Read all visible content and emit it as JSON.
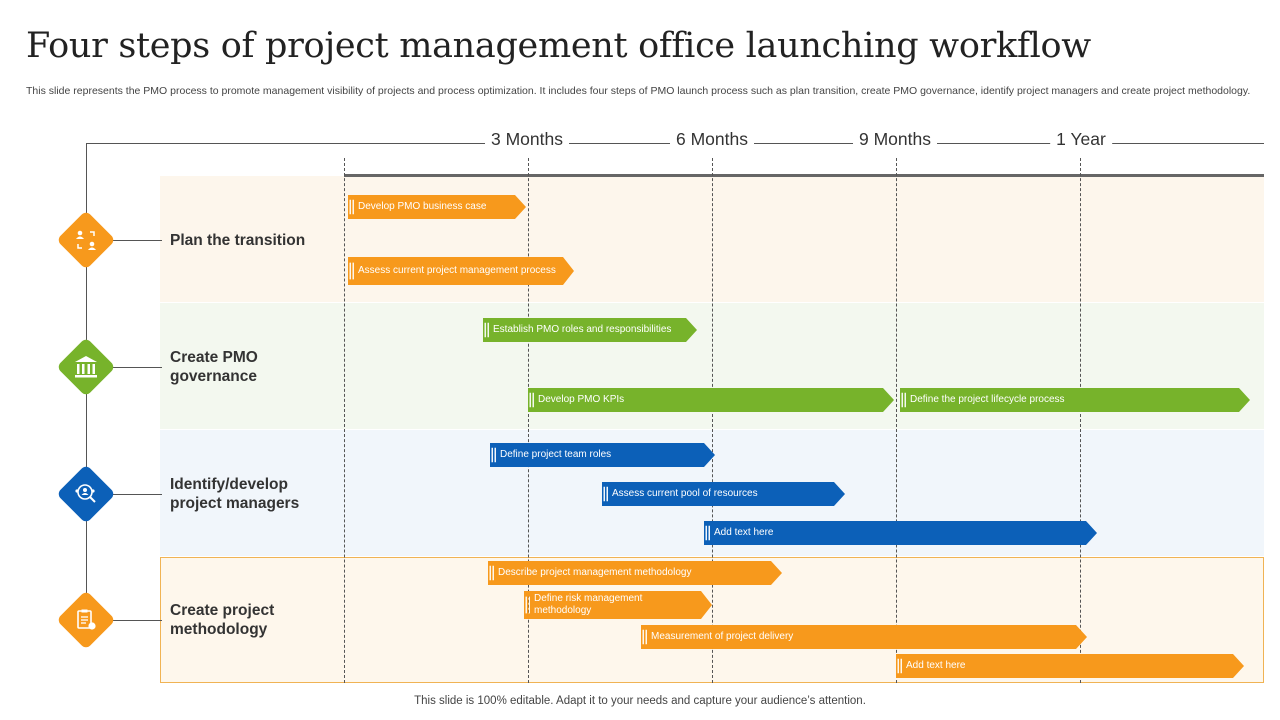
{
  "title": "Four steps of project management office launching workflow",
  "subtitle": "This slide represents the PMO process to promote management visibility of projects  and process optimization. It includes four steps of PMO launch process such as plan transition, create PMO governance, identify project managers and create project methodology.",
  "footer": "This slide is 100% editable. Adapt it to your needs and capture your audience’s attention.",
  "timeline": [
    "3 Months",
    "6 Months",
    "9 Months",
    "1 Year"
  ],
  "colors": {
    "orange": "#f7991c",
    "green": "#77b32b",
    "blue": "#0c60b8"
  },
  "stages": [
    {
      "label": "Plan the transition",
      "color": "orange",
      "icon": "people-transition-icon",
      "tasks": [
        "Develop PMO  business case",
        "Assess current project management  process"
      ]
    },
    {
      "label": "Create PMO governance",
      "color": "green",
      "icon": "institution-building-icon",
      "tasks": [
        "Establish PMO  roles and responsibilities",
        "Develop PMO  KPIs",
        "Define the project lifecycle process"
      ]
    },
    {
      "label": "Identify/develop project managers",
      "color": "blue",
      "icon": "manager-search-icon",
      "tasks": [
        "Define project team roles",
        "Assess current pool of resources",
        "Add text here"
      ]
    },
    {
      "label": "Create project methodology",
      "color": "orange",
      "icon": "methodology-clipboard-icon",
      "tasks": [
        "Describe project management  methodology",
        "Define risk  management methodology",
        "Measurement of project delivery",
        "Add text here"
      ]
    }
  ]
}
